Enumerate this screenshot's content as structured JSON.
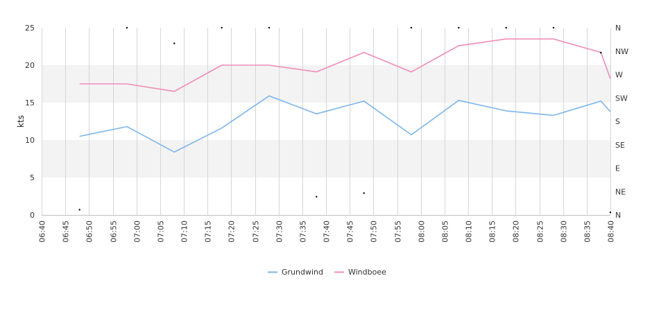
{
  "chart_data": {
    "type": "line",
    "ylabel": "kts",
    "ylim": [
      0,
      25
    ],
    "yticks": [
      "0",
      "5",
      "10",
      "15",
      "20",
      "25"
    ],
    "y2_ticks": [
      "N",
      "NE",
      "E",
      "SE",
      "S",
      "SW",
      "W",
      "NW",
      "N"
    ],
    "y2_range": [
      0,
      360
    ],
    "x_range": [
      "06:40",
      "08:40"
    ],
    "xticks": [
      "06:40",
      "06:45",
      "06:50",
      "06:55",
      "07:00",
      "07:05",
      "07:10",
      "07:15",
      "07:20",
      "07:25",
      "07:30",
      "07:35",
      "07:40",
      "07:45",
      "07:50",
      "07:55",
      "08:00",
      "08:05",
      "08:10",
      "08:15",
      "08:20",
      "08:25",
      "08:30",
      "08:35",
      "08:40"
    ],
    "grid": "vertical lines + alternating horizontal bands",
    "band_color": "#f3f3f3",
    "legend_position": "bottom-center",
    "x": [
      "06:48",
      "06:58",
      "07:08",
      "07:18",
      "07:28",
      "07:38",
      "07:48",
      "07:58",
      "08:08",
      "08:18",
      "08:28",
      "08:38",
      "08:40"
    ],
    "series": [
      {
        "name": "Grundwind",
        "color": "#7cb5ec",
        "values": [
          10.5,
          11.8,
          8.4,
          11.6,
          15.9,
          13.5,
          15.2,
          10.7,
          15.3,
          13.9,
          13.3,
          15.2,
          13.8
        ]
      },
      {
        "name": "Windboee",
        "color": "#f08cb9",
        "values": [
          17.5,
          17.5,
          16.5,
          20.0,
          20.0,
          19.1,
          21.7,
          19.1,
          22.6,
          23.5,
          23.5,
          21.7,
          18.2
        ]
      }
    ],
    "direction": {
      "x": [
        "06:48",
        "06:58",
        "07:08",
        "07:18",
        "07:28",
        "07:38",
        "07:48",
        "07:58",
        "08:08",
        "08:18",
        "08:28",
        "08:38",
        "08:40"
      ],
      "values": [
        10,
        360,
        330,
        360,
        360,
        35,
        42,
        360,
        360,
        360,
        360,
        312,
        5
      ]
    }
  }
}
